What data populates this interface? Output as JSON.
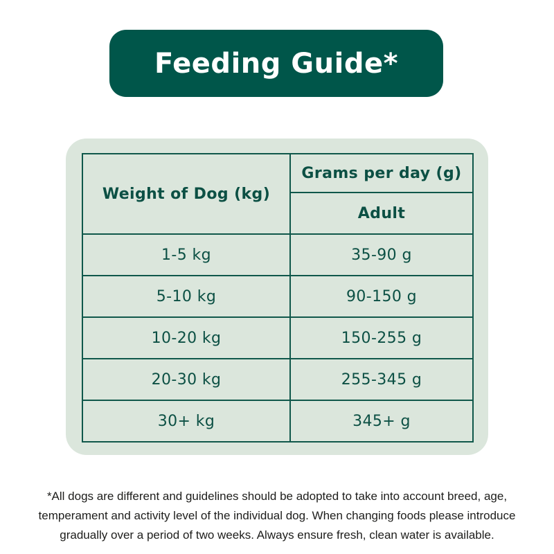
{
  "title": {
    "label": "Feeding Guide*"
  },
  "table": {
    "weight_header": "Weight of Dog (kg)",
    "grams_header": "Grams per day (g)",
    "grams_subheader": "Adult",
    "rows": [
      {
        "weight": "1-5 kg",
        "grams": "35-90 g"
      },
      {
        "weight": "5-10 kg",
        "grams": "90-150 g"
      },
      {
        "weight": "10-20 kg",
        "grams": "150-255 g"
      },
      {
        "weight": "20-30 kg",
        "grams": "255-345 g"
      },
      {
        "weight": "30+ kg",
        "grams": "345+ g"
      }
    ]
  },
  "footnote": {
    "text": "*All dogs are different and guidelines should be adopted to take into account breed, age, temperament and activity level of the individual dog. When changing foods please introduce gradually over a period of two weeks. Always ensure fresh, clean water is available."
  },
  "colors": {
    "banner_green": "#00564A",
    "panel_green": "#DBE6DC",
    "border_green": "#0F574A",
    "text_green": "#0C5044",
    "footnote_black": "#1D1D1B",
    "background": "#FFFFFF"
  }
}
